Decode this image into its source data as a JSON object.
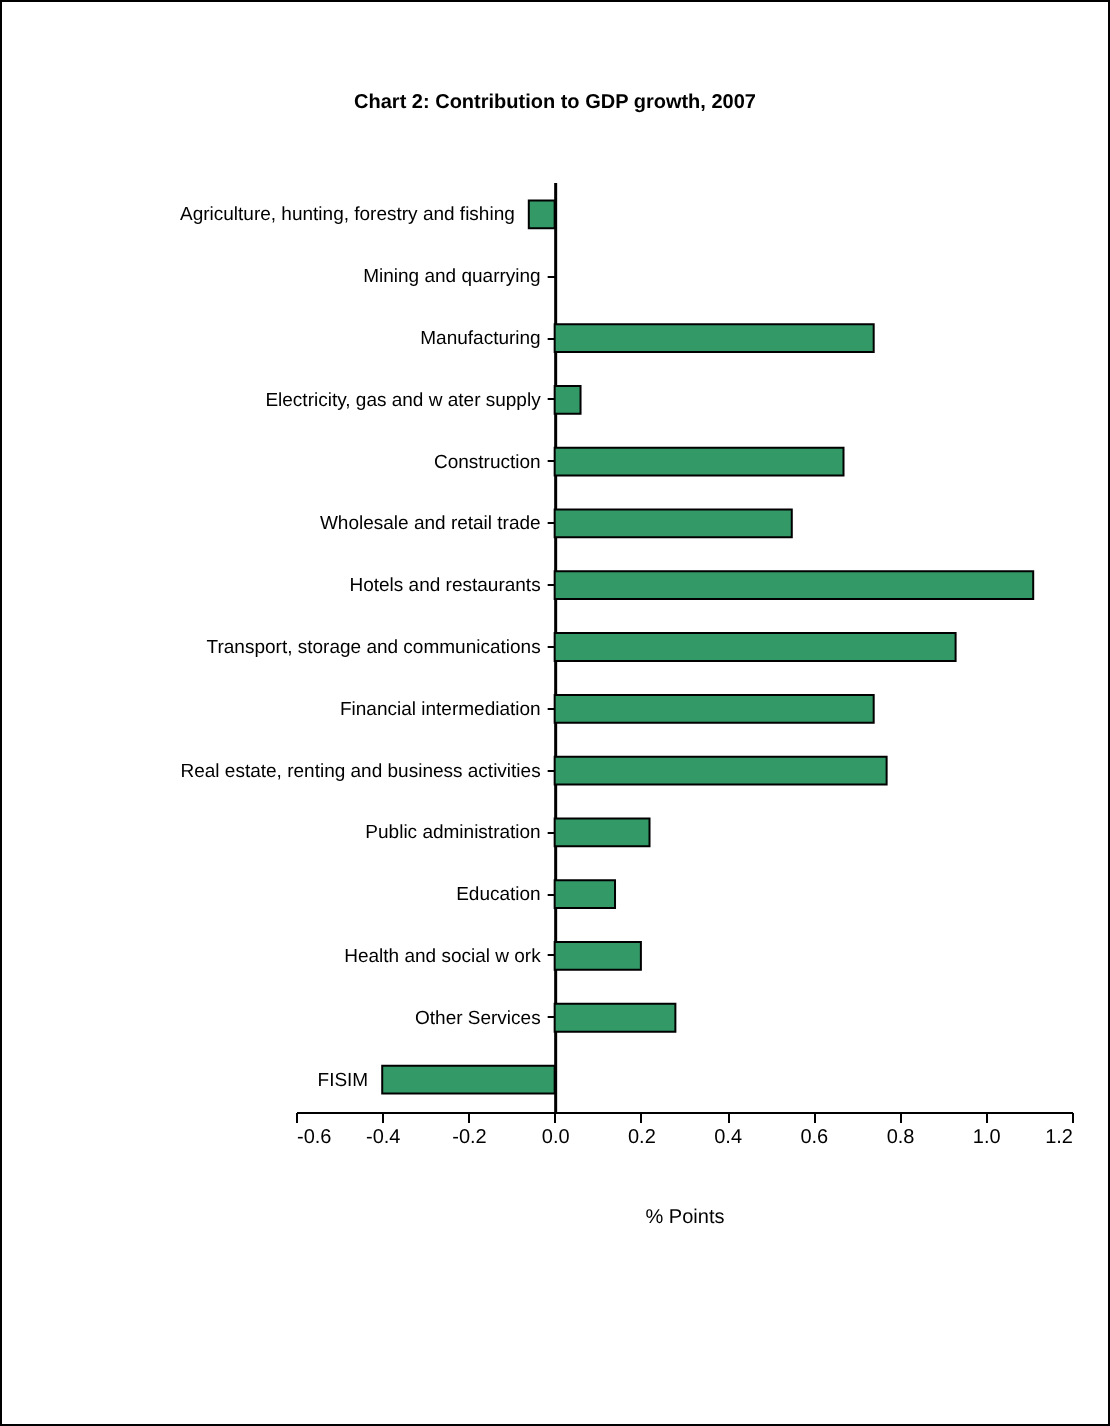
{
  "chart_data": {
    "type": "bar",
    "orientation": "horizontal",
    "title": "Chart 2: Contribution to GDP growth, 2007",
    "xlabel": "% Points",
    "categories": [
      "Agriculture, hunting, forestry and fishing",
      "Mining and quarrying",
      "Manufacturing",
      "Electricity, gas and w ater supply",
      "Construction",
      "Wholesale and retail trade",
      "Hotels and restaurants",
      "Transport, storage and communications",
      "Financial intermediation",
      "Real estate, renting and business activities",
      "Public administration",
      "Education",
      "Health and social w ork",
      "Other Services",
      "FISIM"
    ],
    "values": [
      -0.06,
      0,
      0.74,
      0.06,
      0.67,
      0.55,
      1.11,
      0.93,
      0.74,
      0.77,
      0.22,
      0.14,
      0.2,
      0.28,
      -0.4
    ],
    "color": "#339966",
    "xlim": [
      -0.6,
      1.2
    ],
    "xticks": [
      -0.6,
      -0.4,
      -0.2,
      {
        "value": 0,
        "label": "0.0"
      },
      0.2,
      0.4,
      0.6,
      0.8,
      {
        "value": 1,
        "label": "1.0"
      },
      1.2
    ],
    "data_labels": false
  }
}
